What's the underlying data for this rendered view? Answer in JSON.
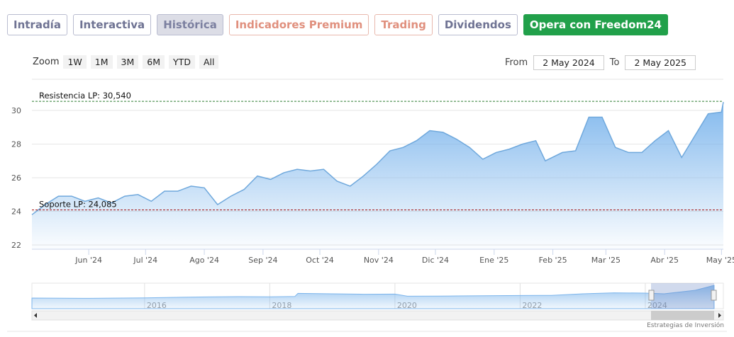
{
  "tabs": [
    "Intradía",
    "Interactiva",
    "Histórica",
    "Indicadores Premium",
    "Trading",
    "Dividendos",
    "Opera con Freedom24"
  ],
  "zoom": {
    "label": "Zoom",
    "buttons": [
      "1W",
      "1M",
      "3M",
      "6M",
      "YTD",
      "All"
    ]
  },
  "range": {
    "from_label": "From",
    "from": "2 May 2024",
    "to_label": "To",
    "to": "2 May 2025"
  },
  "chart_data": {
    "type": "area",
    "color": "#6fa8dc",
    "x": [
      "2024-05-02",
      "2024-05-09",
      "2024-05-16",
      "2024-05-23",
      "2024-05-30",
      "2024-06-06",
      "2024-06-13",
      "2024-06-20",
      "2024-06-27",
      "2024-07-04",
      "2024-07-11",
      "2024-07-18",
      "2024-07-25",
      "2024-08-01",
      "2024-08-08",
      "2024-08-15",
      "2024-08-22",
      "2024-08-29",
      "2024-09-05",
      "2024-09-12",
      "2024-09-19",
      "2024-09-26",
      "2024-10-03",
      "2024-10-10",
      "2024-10-17",
      "2024-10-24",
      "2024-10-31",
      "2024-11-07",
      "2024-11-14",
      "2024-11-21",
      "2024-11-28",
      "2024-12-05",
      "2024-12-12",
      "2024-12-19",
      "2024-12-26",
      "2025-01-02",
      "2025-01-09",
      "2025-01-16",
      "2025-01-23",
      "2025-01-28",
      "2025-02-06",
      "2025-02-13",
      "2025-02-20",
      "2025-02-27",
      "2025-03-06",
      "2025-03-13",
      "2025-03-20",
      "2025-03-27",
      "2025-04-03",
      "2025-04-10",
      "2025-04-17",
      "2025-04-24",
      "2025-05-01",
      "2025-05-02"
    ],
    "values": [
      23.8,
      24.4,
      24.9,
      24.9,
      24.6,
      24.8,
      24.5,
      24.9,
      25.0,
      24.6,
      25.2,
      25.2,
      25.5,
      25.4,
      24.4,
      24.9,
      25.3,
      26.1,
      25.9,
      26.3,
      26.5,
      26.4,
      26.5,
      25.8,
      25.5,
      26.1,
      26.8,
      27.6,
      27.8,
      28.2,
      28.8,
      28.7,
      28.3,
      27.8,
      27.1,
      27.5,
      27.7,
      28.0,
      28.2,
      27.0,
      27.5,
      27.6,
      29.6,
      29.6,
      27.8,
      27.5,
      27.5,
      28.2,
      28.8,
      27.2,
      28.5,
      29.8,
      29.9,
      30.5
    ],
    "xlim": [
      "2024-05-02",
      "2025-05-02"
    ],
    "xticks": [
      {
        "value": "2024-06-01",
        "label": "Jun '24"
      },
      {
        "value": "2024-07-01",
        "label": "Jul '24"
      },
      {
        "value": "2024-08-01",
        "label": "Ago '24"
      },
      {
        "value": "2024-09-01",
        "label": "Sep '24"
      },
      {
        "value": "2024-10-01",
        "label": "Oct '24"
      },
      {
        "value": "2024-11-01",
        "label": "Nov '24"
      },
      {
        "value": "2024-12-01",
        "label": "Dic '24"
      },
      {
        "value": "2025-01-01",
        "label": "Ene '25"
      },
      {
        "value": "2025-02-01",
        "label": "Feb '25"
      },
      {
        "value": "2025-03-01",
        "label": "Mar '25"
      },
      {
        "value": "2025-04-01",
        "label": "Abr '25"
      },
      {
        "value": "2025-05-01",
        "label": "May '25"
      }
    ],
    "ylim": [
      21.75,
      31.85
    ],
    "yticks": [
      22,
      24,
      26,
      28,
      30
    ],
    "grid": true,
    "annotations": [
      {
        "label": "Resistencia LP: 30,540",
        "value": 30.54,
        "color": "#2e7d32"
      },
      {
        "label": "Soporte LP: 24,085",
        "value": 24.085,
        "color": "#a31515"
      }
    ],
    "navigator": {
      "x": [
        2014.2,
        2015,
        2016,
        2016.5,
        2017,
        2017.5,
        2018,
        2018.4,
        2018.45,
        2019,
        2019.5,
        2020,
        2020.2,
        2020.7,
        2021,
        2022,
        2022.5,
        2023,
        2023.5,
        2024,
        2024.3,
        2024.8,
        2025.1
      ],
      "values": [
        21.5,
        21.3,
        21.6,
        22,
        22.3,
        22.5,
        22.4,
        22.6,
        24.8,
        24.5,
        24.2,
        24.3,
        22.8,
        22.9,
        23.0,
        23.3,
        23.4,
        24.5,
        25.2,
        25,
        24.5,
        27,
        30.5
      ],
      "xlim": [
        2014.2,
        2025.1
      ],
      "ylim": [
        14,
        32
      ],
      "xticks": [
        2016,
        2018,
        2020,
        2022,
        2024
      ]
    }
  },
  "footer": "Estrategias de Inversión"
}
